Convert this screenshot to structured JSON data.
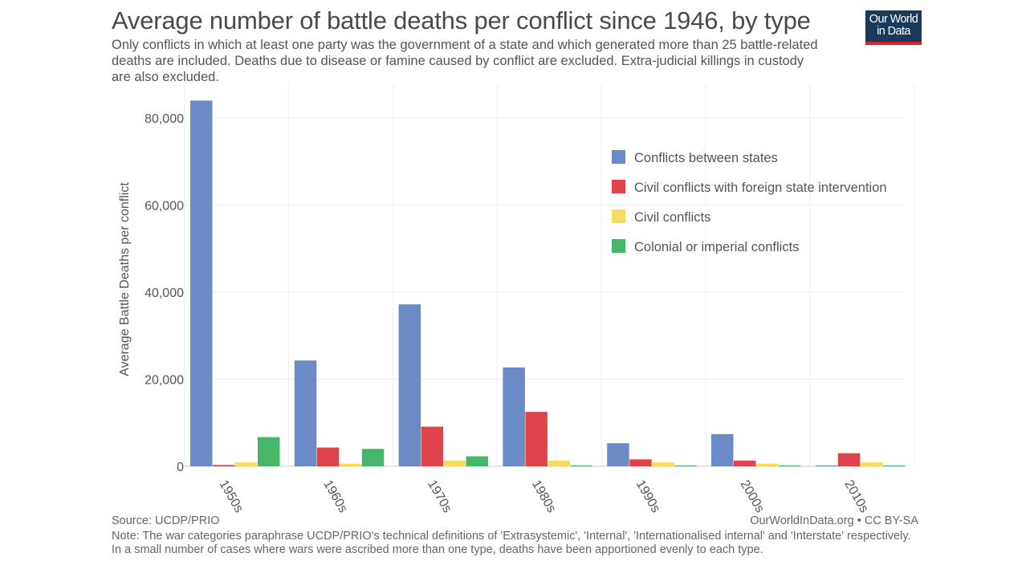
{
  "header": {
    "title": "Average number of battle deaths per conflict since 1946, by type",
    "subtitle": "Only conflicts in which at least one party was the government of a state and which generated more than 25 battle-related deaths are included. Deaths due to disease or famine caused by conflict are excluded. Extra-judicial killings in custody are also excluded.",
    "logo_line1": "Our World",
    "logo_line2": "in Data"
  },
  "footer": {
    "source": "Source: UCDP/PRIO",
    "credit": "OurWorldInData.org • CC BY-SA",
    "note": "Note: The war categories paraphrase UCDP/PRIO's technical definitions of 'Extrasystemic', 'Internal', 'Internationalised internal' and 'Interstate' respectively. In a small number of cases where wars were ascribed more than one type, deaths have been apportioned evenly to each type."
  },
  "chart_data": {
    "type": "bar",
    "title": "Average number of battle deaths per conflict since 1946, by type",
    "xlabel": "",
    "ylabel": "Average Battle Deaths per conflict",
    "ylim": [
      0,
      86000
    ],
    "yticks": [
      0,
      20000,
      40000,
      60000,
      80000
    ],
    "ytick_labels": [
      "0",
      "20,000",
      "40,000",
      "60,000",
      "80,000"
    ],
    "grid": true,
    "legend_position": "top-right",
    "categories": [
      "1950s",
      "1960s",
      "1970s",
      "1980s",
      "1990s",
      "2000s",
      "2010s"
    ],
    "series": [
      {
        "name": "Conflicts between states",
        "color": "#6b8ac6",
        "values": [
          84000,
          24300,
          37200,
          22700,
          5300,
          7400,
          200
        ]
      },
      {
        "name": "Civil conflicts with foreign state intervention",
        "color": "#e0434a",
        "values": [
          300,
          4300,
          9100,
          12500,
          1600,
          1300,
          3000
        ]
      },
      {
        "name": "Civil conflicts",
        "color": "#f7dc5f",
        "values": [
          900,
          600,
          1300,
          1300,
          900,
          600,
          900
        ]
      },
      {
        "name": "Colonial or imperial conflicts",
        "color": "#47b56a",
        "values": [
          6700,
          4000,
          2300,
          200,
          200,
          200,
          200
        ]
      }
    ]
  }
}
